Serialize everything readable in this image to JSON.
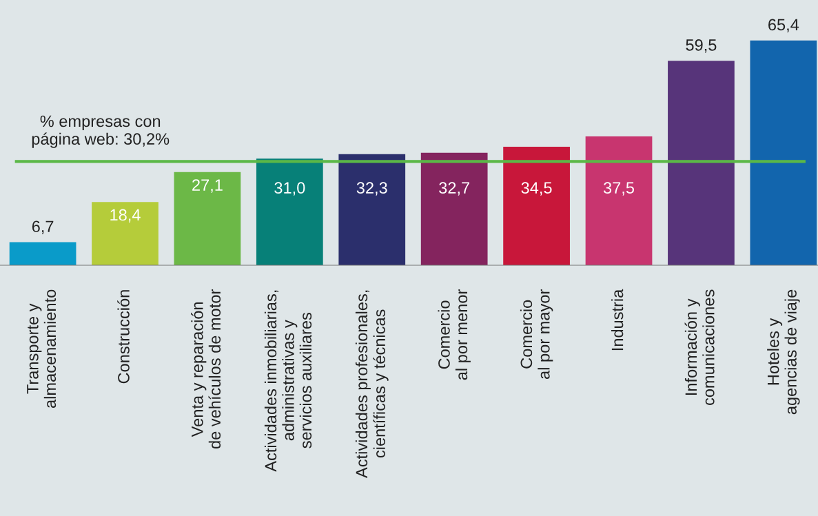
{
  "chart_data": {
    "type": "bar",
    "categories": [
      "Transporte y\nalmacenamiento",
      "Construcción",
      "Venta y reparación\nde vehículos de motor",
      "Actividades inmobiliarias,\nadministrativas y\nservicios auxiliares",
      "Actividades profesionales,\ncientíficas y técnicas",
      "Comercio\nal por menor",
      "Comercio\nal por mayor",
      "Industria",
      "Información y\ncomunicaciones",
      "Hoteles y\nagencias de viaje"
    ],
    "values": [
      6.7,
      18.4,
      27.1,
      31.0,
      32.3,
      32.7,
      34.5,
      37.5,
      59.5,
      65.4
    ],
    "value_labels": [
      "6,7",
      "18,4",
      "27,1",
      "31,0",
      "32,3",
      "32,7",
      "34,5",
      "37,5",
      "59,5",
      "65,4"
    ],
    "colors": [
      "#0a9bc9",
      "#b5cc3a",
      "#6cb847",
      "#078078",
      "#2b2f6c",
      "#84245e",
      "#c8173a",
      "#c8356f",
      "#57347a",
      "#1265ad"
    ],
    "ref_lines": [
      {
        "axis": "y",
        "value": 30.2,
        "label": "% empresas con\npágina web: 30,2%",
        "color": "#5bb847",
        "line_style": "solid"
      }
    ],
    "grid": false,
    "legend": false
  }
}
